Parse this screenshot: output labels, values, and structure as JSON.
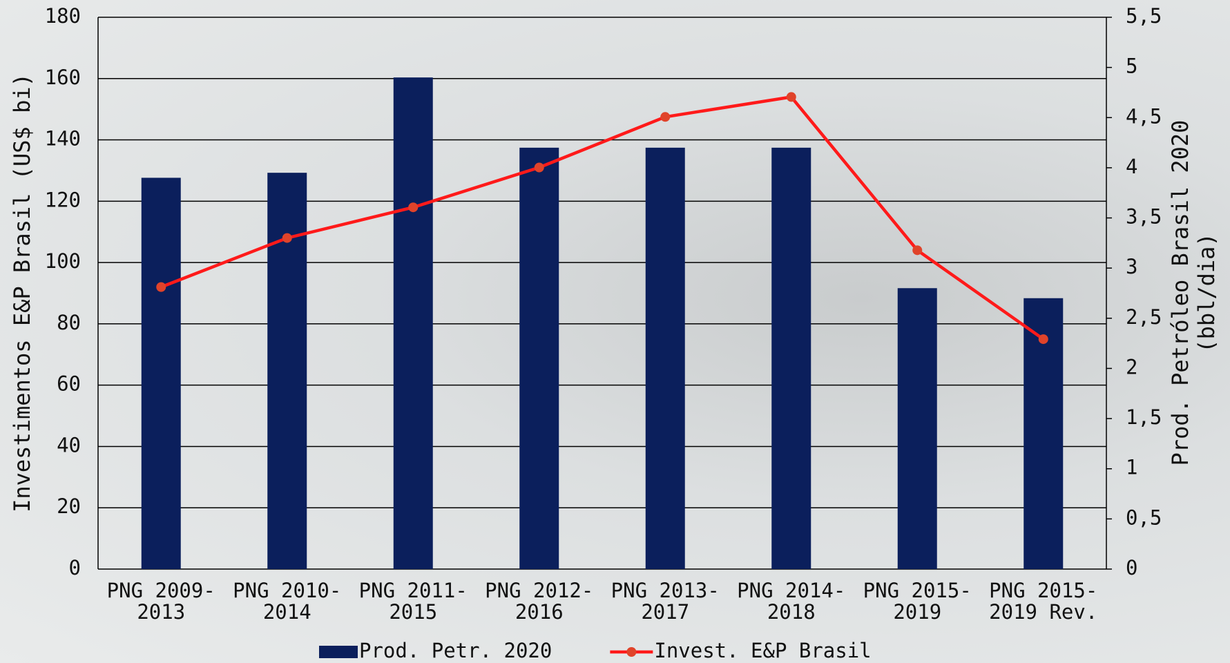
{
  "chart_data": {
    "type": "bar",
    "categories": [
      "PNG 2009-2013",
      "PNG 2010-2014",
      "PNG 2011-2015",
      "PNG 2012-2016",
      "PNG 2013-2017",
      "PNG 2014-2018",
      "PNG 2015-2019",
      "PNG 2015-2019 Rev."
    ],
    "series": [
      {
        "name": "Prod. Petr. 2020",
        "type": "bar",
        "axis": "y2",
        "color": "#0b1f5c",
        "values": [
          3.9,
          3.95,
          4.9,
          4.2,
          4.2,
          4.2,
          2.8,
          2.7
        ]
      },
      {
        "name": "Invest. E&P Brasil",
        "type": "line",
        "color": "#ff1a1a",
        "marker_color": "#e0432a",
        "values": [
          92,
          108,
          118,
          131,
          147.5,
          154,
          104,
          75
        ]
      }
    ],
    "y_label": "Investimentos E&P Brasil (US$ bi)",
    "y2_label": "Prod. Petróleo Brasil 2020 (bbl/dia)",
    "ylim": [
      0,
      180
    ],
    "yticks": [
      0,
      20,
      40,
      60,
      80,
      100,
      120,
      140,
      160,
      180
    ],
    "y2lim": [
      0,
      5.5
    ],
    "y2ticks": [
      0,
      {
        "value": 0.5,
        "label": "0,5"
      },
      1,
      {
        "value": 1.5,
        "label": "1,5"
      },
      2,
      {
        "value": 2.5,
        "label": "2,5"
      },
      3,
      {
        "value": 3.5,
        "label": "3,5"
      },
      4,
      {
        "value": 4.5,
        "label": "4,5"
      },
      5,
      {
        "value": 5.5,
        "label": "5,5"
      }
    ],
    "grid": true,
    "legend": "bottom"
  }
}
